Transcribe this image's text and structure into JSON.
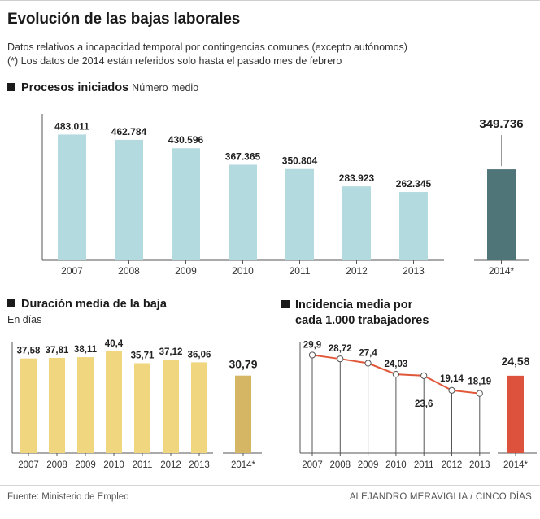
{
  "header": {
    "title": "Evolución de las bajas laborales",
    "subtitle": "Datos relativos a incapacidad temporal por contingencias comunes (excepto autónomos)",
    "note": "(*) Los datos de 2014 están referidos solo hasta el pasado mes de febrero"
  },
  "footer": {
    "source": "Fuente: Ministerio de Empleo",
    "credit": "ALEJANDRO MERAVIGLIA / CINCO DÍAS"
  },
  "colors": {
    "procesos_bar": "#b3dadf",
    "procesos_highlight": "#4f7578",
    "duracion_bar": "#f0d67f",
    "duracion_highlight": "#d4b664",
    "incidencia_line": "#e0583a",
    "incidencia_highlight": "#dc523c",
    "axis": "#555555"
  },
  "chart_data": [
    {
      "id": "procesos",
      "type": "bar",
      "title": "Procesos iniciados",
      "unit_label": "Número medio",
      "categories": [
        "2007",
        "2008",
        "2009",
        "2010",
        "2011",
        "2012",
        "2013"
      ],
      "values": [
        483011,
        462784,
        430596,
        367365,
        350804,
        283923,
        262345
      ],
      "labels": [
        "483.011",
        "462.784",
        "430.596",
        "367.365",
        "350.804",
        "283.923",
        "262.345"
      ],
      "highlight": {
        "category": "2014*",
        "value": 349736,
        "label": "349.736"
      },
      "ylim": [
        0,
        500000
      ]
    },
    {
      "id": "duracion",
      "type": "bar",
      "title": "Duración media de la baja",
      "unit_label": "En días",
      "categories": [
        "2007",
        "2008",
        "2009",
        "2010",
        "2011",
        "2012",
        "2013"
      ],
      "values": [
        37.58,
        37.81,
        38.11,
        40.4,
        35.71,
        37.12,
        36.06
      ],
      "labels": [
        "37,58",
        "37,81",
        "38,11",
        "40,4",
        "35,71",
        "37,12",
        "36,06"
      ],
      "highlight": {
        "category": "2014*",
        "value": 30.79,
        "label": "30,79"
      },
      "ylim": [
        0,
        42
      ]
    },
    {
      "id": "incidencia",
      "type": "line",
      "title": "Incidencia media por",
      "title_line2": "cada 1.000 trabajadores",
      "categories": [
        "2007",
        "2008",
        "2009",
        "2010",
        "2011",
        "2012",
        "2013"
      ],
      "values": [
        29.9,
        28.72,
        27.4,
        24.03,
        23.6,
        19.14,
        18.19
      ],
      "labels": [
        "29,9",
        "28,72",
        "27,4",
        "24,03",
        "23,6",
        "19,14",
        "18,19"
      ],
      "highlight": {
        "category": "2014*",
        "value": 24.58,
        "label": "24,58"
      },
      "ylim": [
        0,
        31
      ]
    }
  ]
}
